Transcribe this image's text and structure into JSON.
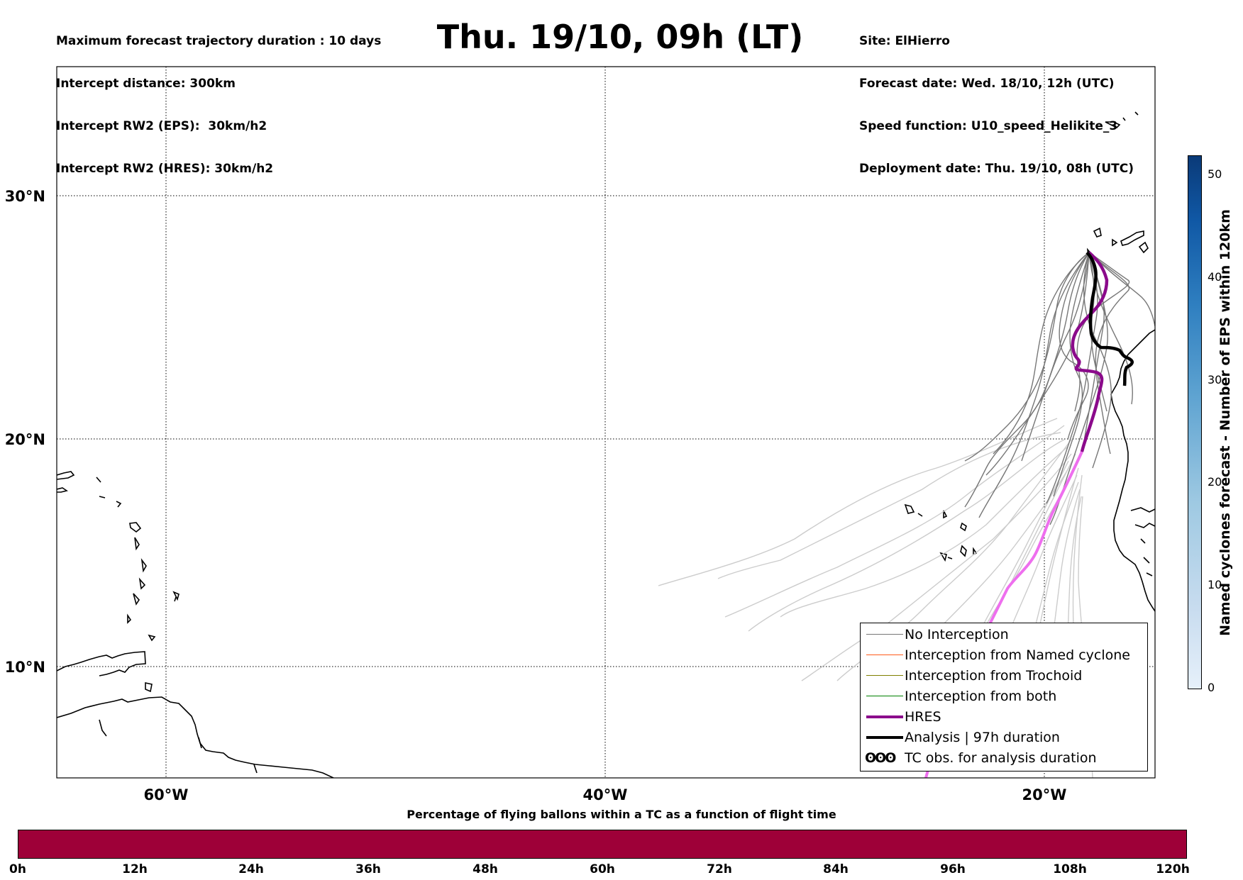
{
  "header": {
    "left_lines": [
      "Maximum forecast trajectory duration : 10 days",
      "Intercept distance: 300km",
      "Intercept RW2 (EPS):  30km/h2",
      "Intercept RW2 (HRES): 30km/h2"
    ],
    "title": "Thu. 19/10, 09h (LT)",
    "right_lines": [
      "Site: ElHierro",
      "Forecast date: Wed. 18/10, 12h (UTC)",
      "Speed function: U10_speed_Helikite_3",
      "Deployment date: Thu. 19/10, 08h (UTC)"
    ]
  },
  "map": {
    "lat_labels": [
      "30°N",
      "20°N",
      "10°N"
    ],
    "lon_labels": [
      "60°W",
      "40°W",
      "20°W"
    ],
    "colors": {
      "eps_near": "#777777",
      "eps_far": "#cccccc",
      "hres": "#8b0a8b",
      "hres_far": "#ee6fee",
      "analysis": "#000000"
    }
  },
  "legend": {
    "items": [
      {
        "label": "No Interception",
        "color": "#777777",
        "style": "thin"
      },
      {
        "label": "Interception from Named cyclone",
        "color": "#ff5a1a",
        "style": "thin"
      },
      {
        "label": "Interception from Trochoid",
        "color": "#808000",
        "style": "thin"
      },
      {
        "label": "Interception from both",
        "color": "#008000",
        "style": "thin"
      },
      {
        "label": "HRES",
        "color": "#8b0a8b",
        "style": "thick"
      },
      {
        "label": "Analysis | 97h duration",
        "color": "#000000",
        "style": "thick"
      },
      {
        "label": "TC obs. for analysis duration",
        "color": "#000000",
        "style": "symbol",
        "symbol_text": "ʘʘʘ"
      }
    ]
  },
  "colorbar_right": {
    "label": "Named cyclones forecast - Number of EPS within 120km",
    "ticks": [
      "0",
      "10",
      "20",
      "30",
      "40",
      "50"
    ]
  },
  "colorbar_bottom": {
    "title": "Percentage of flying ballons within a TC as a function of flight time",
    "ticks": [
      "0h",
      "12h",
      "24h",
      "36h",
      "48h",
      "60h",
      "72h",
      "84h",
      "96h",
      "108h",
      "120h"
    ],
    "color": "#9e0038"
  }
}
